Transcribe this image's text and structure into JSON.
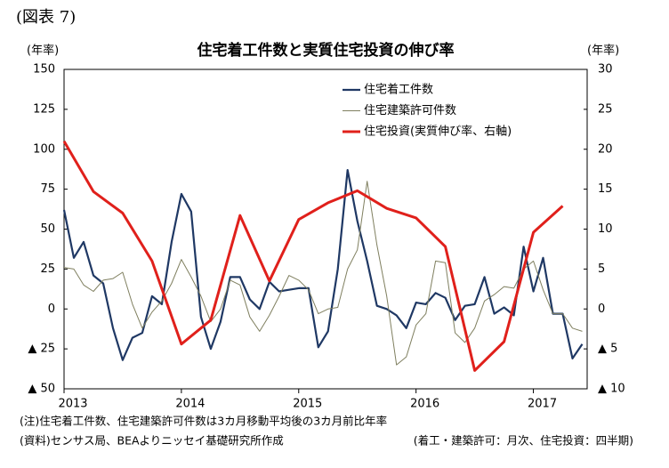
{
  "chart_data": {
    "type": "line",
    "figure_label": "(図表 7)",
    "title": "住宅着工件数と実質住宅投資の伸び率",
    "ylabel": "(年率)",
    "y2label": "(年率)",
    "categories": [
      "2013",
      null,
      null,
      null,
      null,
      null,
      null,
      null,
      null,
      null,
      null,
      null,
      "2014",
      null,
      null,
      null,
      null,
      null,
      null,
      null,
      null,
      null,
      null,
      null,
      "2015",
      null,
      null,
      null,
      null,
      null,
      null,
      null,
      null,
      null,
      null,
      null,
      "2016",
      null,
      null,
      null,
      null,
      null,
      null,
      null,
      null,
      null,
      null,
      null,
      "2017",
      null,
      null,
      null,
      null,
      null
    ],
    "ylim": [
      -50,
      150
    ],
    "yticks": [
      {
        "value": -50,
        "label": "▲ 50"
      },
      {
        "value": -25,
        "label": "▲ 25"
      },
      0,
      25,
      50,
      75,
      100,
      125,
      150
    ],
    "y2lim": [
      -10,
      30
    ],
    "y2ticks": [
      {
        "value": -10,
        "label": "▲ 10"
      },
      {
        "value": -5,
        "label": "▲ 5"
      },
      0,
      5,
      10,
      15,
      20,
      25,
      30
    ],
    "grid": false,
    "legend": "top-right",
    "series": [
      {
        "name": "住宅着工件数",
        "color": "#1f3864",
        "width": 2.2,
        "values": [
          62,
          32,
          42,
          21,
          16,
          -12,
          -32,
          -18,
          -15,
          8,
          3,
          42,
          72,
          61,
          -5,
          -25,
          -8,
          20,
          20,
          6,
          0,
          17,
          11,
          12,
          13,
          13,
          -24,
          -14,
          25,
          87,
          55,
          30,
          2,
          0,
          -4,
          -12,
          4,
          3,
          10,
          7,
          -7,
          2,
          3,
          20,
          -3,
          1,
          -4,
          39,
          11,
          32,
          -3,
          -3,
          -31,
          -22
        ]
      },
      {
        "name": "住宅建築許可件数",
        "color": "#7f7f5f",
        "width": 1,
        "values": [
          26,
          25,
          15,
          11,
          18,
          19,
          23,
          3,
          -12,
          -2,
          5,
          16,
          31,
          20,
          8,
          -8,
          0,
          18,
          15,
          -5,
          -14,
          -4,
          8,
          21,
          18,
          12,
          -3,
          0,
          1,
          25,
          37,
          80,
          40,
          8,
          -35,
          -30,
          -10,
          -3,
          30,
          29,
          -15,
          -21,
          -12,
          5,
          9,
          14,
          13,
          25,
          30,
          12,
          -3,
          -3,
          -12,
          -14
        ]
      },
      {
        "name": "住宅投資(実質伸び率、右軸)",
        "color": "#e0201b",
        "width": 3,
        "axis": "y2",
        "x": [
          0,
          3,
          6,
          9,
          12,
          15,
          18,
          21,
          24,
          27,
          30,
          33,
          36,
          39,
          42,
          45,
          48,
          51
        ],
        "values": [
          21,
          14.7,
          12,
          6,
          -4.4,
          -1.4,
          11.7,
          3.5,
          11.2,
          13.3,
          14.8,
          12.6,
          11.4,
          7.8,
          -7.7,
          -4.1,
          9.6,
          12.9
        ]
      }
    ],
    "notes": [
      "(注)住宅着工件数、住宅建築許可件数は3カ月移動平均後の3カ月前比年率",
      "(資料)センサス局、BEAよりニッセイ基礎研究所作成"
    ],
    "note_right": "(着工・建築許可：月次、住宅投資：四半期)"
  }
}
